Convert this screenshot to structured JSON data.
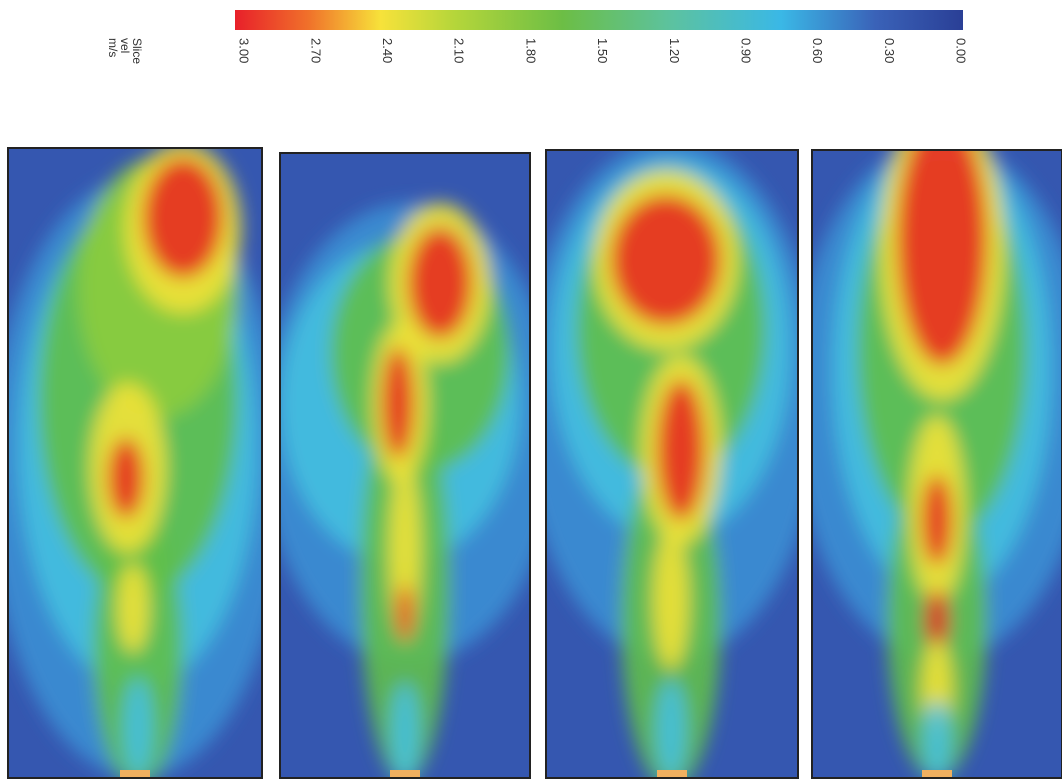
{
  "colorbar": {
    "label": [
      "Slice",
      "vel",
      "m/s"
    ],
    "ticks": [
      "3.00",
      "2.70",
      "2.40",
      "2.10",
      "1.80",
      "1.50",
      "1.20",
      "0.90",
      "0.60",
      "0.30",
      "0.00"
    ]
  }
}
